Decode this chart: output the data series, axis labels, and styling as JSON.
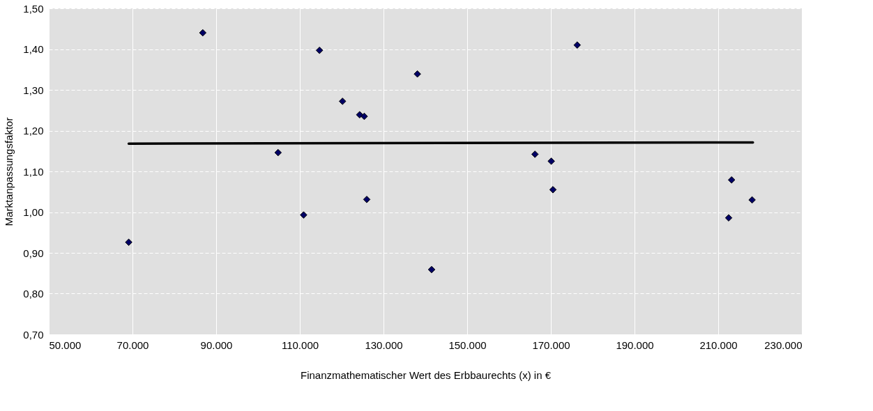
{
  "chart_data": {
    "type": "scatter",
    "xlabel": "Finanzmathematischer  Wert des Erbbaurechts (x) in €",
    "ylabel": "Marktanpassungsfaktor",
    "xlim": [
      50000,
      230000
    ],
    "ylim": [
      0.7,
      1.5
    ],
    "xticks": [
      {
        "value": 50000,
        "label": "50.000"
      },
      {
        "value": 70000,
        "label": "70.000"
      },
      {
        "value": 90000,
        "label": "90.000"
      },
      {
        "value": 110000,
        "label": "110.000"
      },
      {
        "value": 130000,
        "label": "130.000"
      },
      {
        "value": 150000,
        "label": "150.000"
      },
      {
        "value": 170000,
        "label": "170.000"
      },
      {
        "value": 190000,
        "label": "190.000"
      },
      {
        "value": 210000,
        "label": "210.000"
      },
      {
        "value": 230000,
        "label": "230.000"
      }
    ],
    "yticks": [
      {
        "value": 0.7,
        "label": "0,70"
      },
      {
        "value": 0.8,
        "label": "0,80"
      },
      {
        "value": 0.9,
        "label": "0,90"
      },
      {
        "value": 1.0,
        "label": "1,00"
      },
      {
        "value": 1.1,
        "label": "1,10"
      },
      {
        "value": 1.2,
        "label": "1,20"
      },
      {
        "value": 1.3,
        "label": "1,30"
      },
      {
        "value": 1.4,
        "label": "1,40"
      },
      {
        "value": 1.5,
        "label": "1,50"
      }
    ],
    "grid": true,
    "series": [
      {
        "marker": "diamond",
        "color": "#000066",
        "x": [
          69100,
          86800,
          104800,
          110900,
          114700,
          120200,
          124300,
          125400,
          126000,
          138100,
          141500,
          166200,
          170100,
          170500,
          176300,
          212500,
          213200,
          218100
        ],
        "values": [
          0.926,
          1.44,
          1.146,
          0.993,
          1.397,
          1.272,
          1.239,
          1.235,
          1.031,
          1.339,
          0.859,
          1.142,
          1.125,
          1.055,
          1.41,
          0.986,
          1.079,
          1.03
        ]
      },
      {
        "type": "line",
        "marker": "none",
        "color": "#000000",
        "line_style": "solid",
        "x": [
          69100,
          218300
        ],
        "values": [
          1.168,
          1.171
        ]
      }
    ]
  }
}
